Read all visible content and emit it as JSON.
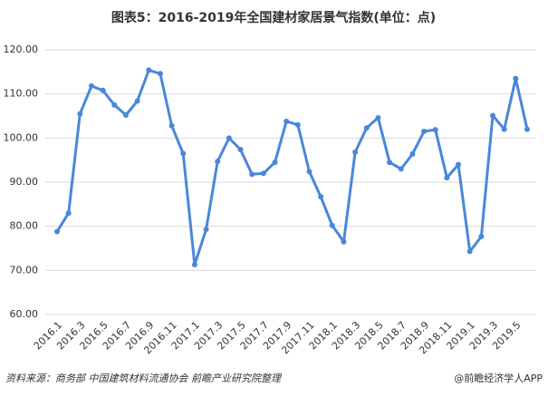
{
  "chart_data": {
    "type": "line",
    "title": "图表5：2016-2019年全国建材家居景气指数(单位：点)",
    "categories": [
      "2016.1",
      null,
      "2016.3",
      null,
      "2016.5",
      null,
      "2016.7",
      null,
      "2016.9",
      null,
      "2016.11",
      null,
      "2017.1",
      null,
      "2017.3",
      null,
      "2017.5",
      null,
      "2017.7",
      null,
      "2017.9",
      null,
      "2017.11",
      null,
      "2018.1",
      null,
      "2018.3",
      null,
      "2018.5",
      null,
      "2018.7",
      null,
      "2018.9",
      null,
      "2018.11",
      null,
      "2019.1",
      null,
      "2019.3",
      null,
      "2019.5",
      null
    ],
    "values": [
      78.8,
      83,
      105.5,
      111.8,
      110.8,
      107.5,
      105.2,
      108.4,
      115.4,
      114.6,
      102.8,
      96.5,
      71.3,
      79.3,
      94.7,
      100,
      97.4,
      91.8,
      92,
      94.5,
      103.8,
      103,
      92.4,
      86.7,
      80.2,
      76.5,
      96.8,
      102.3,
      104.6,
      94.5,
      93,
      96.4,
      101.5,
      101.9,
      91,
      94,
      74.3,
      77.7,
      105.1,
      102,
      113.5,
      102
    ],
    "color": "#4a87d9",
    "ylim": [
      60,
      120
    ],
    "yticks": [
      {
        "value": 60,
        "label": "60.00"
      },
      {
        "value": 70,
        "label": "70.00"
      },
      {
        "value": 80,
        "label": "80.00"
      },
      {
        "value": 90,
        "label": "90.00"
      },
      {
        "value": 100,
        "label": "100.00"
      },
      {
        "value": 110,
        "label": "110.00"
      },
      {
        "value": 120,
        "label": "120.00"
      }
    ],
    "grid": true,
    "source": "资料来源：商务部 中国建筑材料流通协会 前瞻产业研究院整理",
    "credit": "@前瞻经济学人APP"
  }
}
